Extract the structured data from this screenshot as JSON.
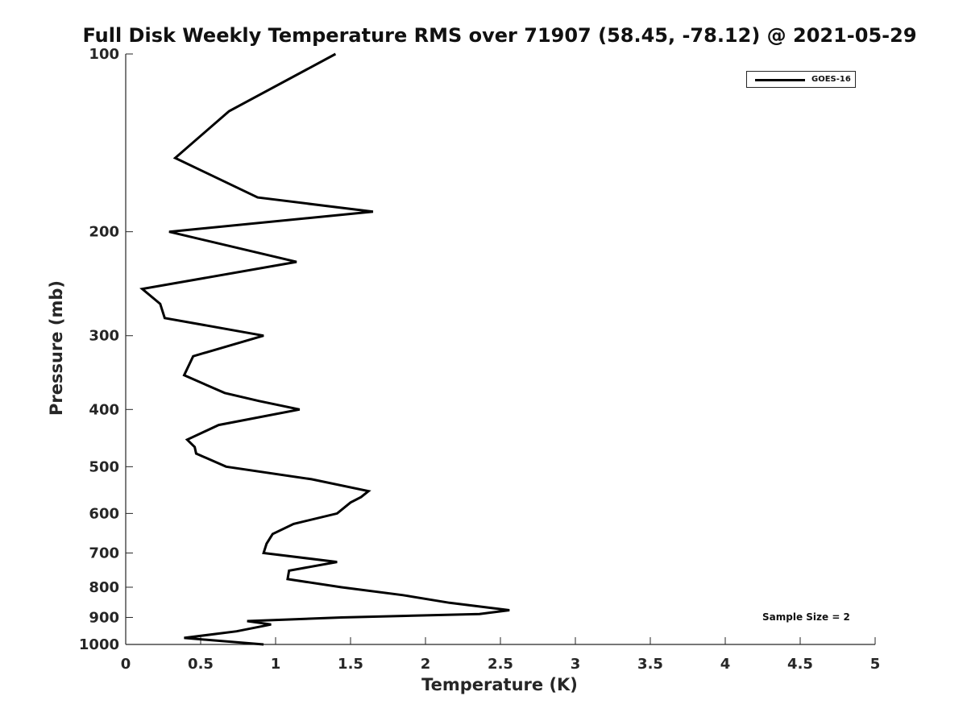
{
  "chart_data": {
    "type": "line",
    "title": "Full Disk Weekly Temperature RMS over 71907 (58.45, -78.12) @ 2021-05-29",
    "xlabel": "Temperature (K)",
    "ylabel": "Pressure (mb)",
    "xlim": [
      0,
      5
    ],
    "ylim": [
      100,
      1000
    ],
    "y_scale": "log",
    "y_reversed": true,
    "grid": false,
    "legend_position": "top-right",
    "xticks": [
      "0",
      "0.5",
      "1",
      "1.5",
      "2",
      "2.5",
      "3",
      "3.5",
      "4",
      "4.5",
      "5"
    ],
    "yticks": [
      "100",
      "200",
      "300",
      "400",
      "500",
      "600",
      "700",
      "800",
      "900",
      "1000"
    ],
    "series": [
      {
        "name": "GOES-16",
        "color": "#000000",
        "x": [
          1.4,
          0.69,
          0.33,
          0.88,
          1.65,
          0.29,
          1.14,
          0.11,
          0.23,
          0.26,
          0.92,
          0.45,
          0.39,
          0.66,
          0.89,
          1.16,
          0.62,
          0.41,
          0.46,
          0.47,
          0.67,
          1.24,
          1.62,
          1.57,
          1.5,
          1.41,
          1.12,
          0.98,
          0.94,
          0.92,
          1.41,
          1.09,
          1.08,
          1.44,
          1.85,
          2.16,
          2.56,
          2.36,
          1.44,
          0.81,
          0.97,
          0.74,
          0.39,
          0.92
        ],
        "y": [
          100,
          125,
          150,
          175,
          185,
          200,
          225,
          250,
          265,
          280,
          300,
          325,
          350,
          375,
          387,
          400,
          425,
          450,
          463,
          475,
          500,
          525,
          550,
          563,
          575,
          600,
          625,
          650,
          675,
          700,
          725,
          750,
          775,
          800,
          825,
          850,
          875,
          888,
          900,
          913,
          925,
          950,
          975,
          1000
        ]
      }
    ],
    "legend": [
      "GOES-16"
    ],
    "annotation": "Sample Size = 2"
  }
}
